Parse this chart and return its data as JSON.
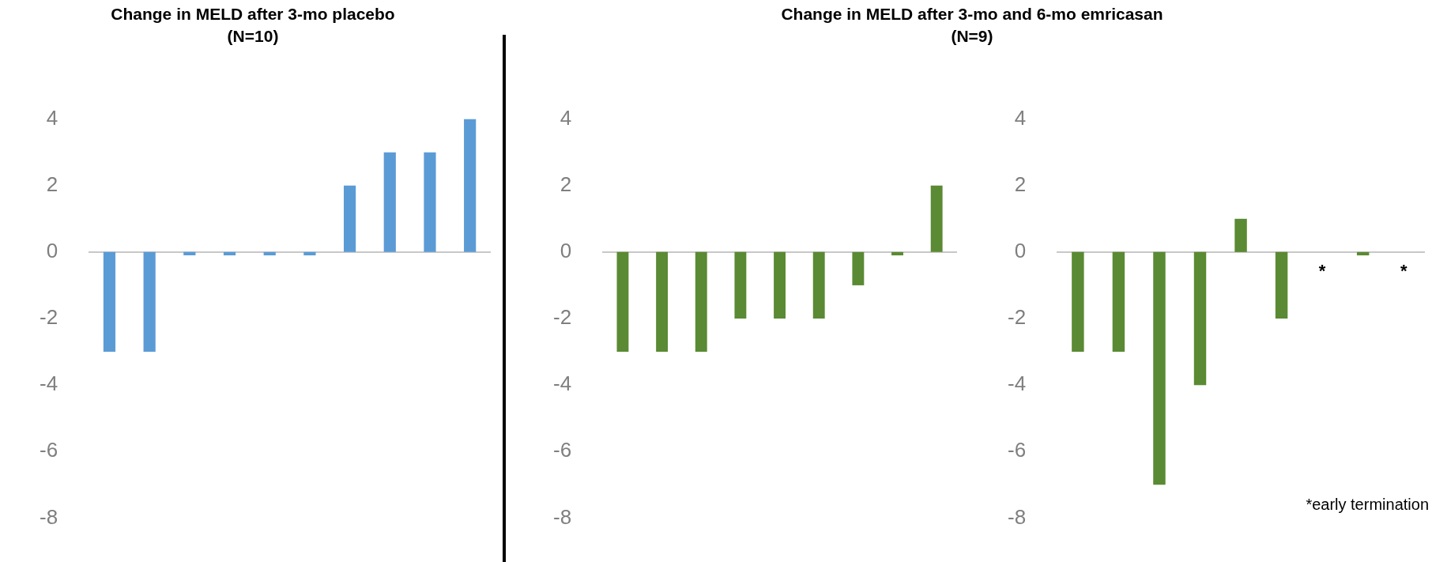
{
  "chart_data": [
    {
      "type": "bar",
      "title": "Change in MELD after 3-mo placebo",
      "subtitle": "(N=10)",
      "categories": [
        null,
        null,
        null,
        null,
        null,
        null,
        null,
        null,
        null,
        null
      ],
      "values": [
        -3,
        -3,
        -0.1,
        -0.1,
        -0.1,
        -0.1,
        2,
        3,
        3,
        4
      ],
      "color": "#5b9bd5",
      "ylim": [
        -8,
        4
      ],
      "yticks": [
        -8,
        -6,
        -4,
        -2,
        0,
        2,
        4
      ]
    },
    {
      "type": "bar",
      "title": "Change in MELD after 3-mo and 6-mo emricasan",
      "subtitle": "(N=9)",
      "categories": [
        null,
        null,
        null,
        null,
        null,
        null,
        null,
        null,
        null
      ],
      "values": [
        -3,
        -3,
        -3,
        -2,
        -2,
        -2,
        -1,
        -0.1,
        2
      ],
      "color": "#5a8a33",
      "ylim": [
        -8,
        4
      ],
      "yticks": [
        -8,
        -6,
        -4,
        -2,
        0,
        2,
        4
      ]
    },
    {
      "type": "bar",
      "categories": [
        null,
        null,
        null,
        null,
        null,
        null,
        null,
        null,
        null
      ],
      "values": [
        -3,
        -3,
        -7,
        -4,
        1,
        -2,
        null,
        -0.1,
        null
      ],
      "value_labels": [
        null,
        null,
        null,
        null,
        null,
        null,
        "*",
        null,
        "*"
      ],
      "color": "#5a8a33",
      "ylim": [
        -8,
        4
      ],
      "yticks": [
        -8,
        -6,
        -4,
        -2,
        0,
        2,
        4
      ],
      "annotations": [
        "*early termination"
      ]
    }
  ]
}
